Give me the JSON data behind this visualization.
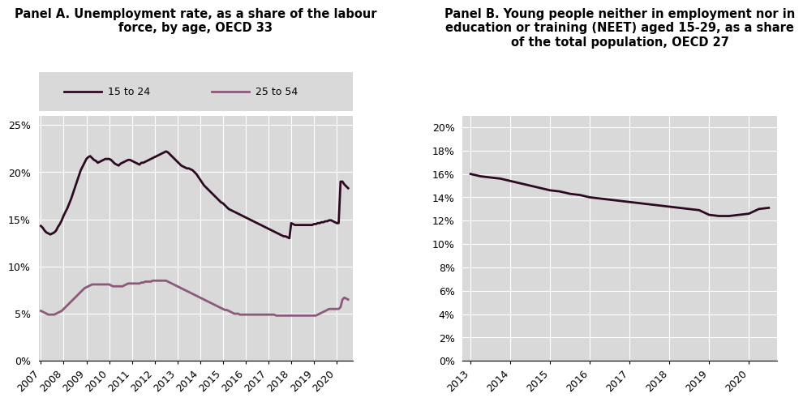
{
  "panel_a_title": "Panel A. Unemployment rate, as a share of the labour\nforce, by age, OECD 33",
  "panel_b_title": "Panel B. Young people neither in employment nor in\neducation or training (NEET) aged 15-29, as a share\nof the total population, OECD 27",
  "color_15_24": "#2d0a22",
  "color_25_54": "#8b5a7a",
  "color_neet": "#2d0a22",
  "bg_color": "#d9d9d9",
  "label_15_24": "15 to 24",
  "label_25_54": "25 to 54",
  "panel_a_x": [
    2007.0,
    2007.083,
    2007.167,
    2007.25,
    2007.333,
    2007.417,
    2007.5,
    2007.583,
    2007.667,
    2007.75,
    2007.833,
    2007.917,
    2008.0,
    2008.083,
    2008.167,
    2008.25,
    2008.333,
    2008.417,
    2008.5,
    2008.583,
    2008.667,
    2008.75,
    2008.833,
    2008.917,
    2009.0,
    2009.083,
    2009.167,
    2009.25,
    2009.333,
    2009.417,
    2009.5,
    2009.583,
    2009.667,
    2009.75,
    2009.833,
    2009.917,
    2010.0,
    2010.083,
    2010.167,
    2010.25,
    2010.333,
    2010.417,
    2010.5,
    2010.583,
    2010.667,
    2010.75,
    2010.833,
    2010.917,
    2011.0,
    2011.083,
    2011.167,
    2011.25,
    2011.333,
    2011.417,
    2011.5,
    2011.583,
    2011.667,
    2011.75,
    2011.833,
    2011.917,
    2012.0,
    2012.083,
    2012.167,
    2012.25,
    2012.333,
    2012.417,
    2012.5,
    2012.583,
    2012.667,
    2012.75,
    2012.833,
    2012.917,
    2013.0,
    2013.083,
    2013.167,
    2013.25,
    2013.333,
    2013.417,
    2013.5,
    2013.583,
    2013.667,
    2013.75,
    2013.833,
    2013.917,
    2014.0,
    2014.083,
    2014.167,
    2014.25,
    2014.333,
    2014.417,
    2014.5,
    2014.583,
    2014.667,
    2014.75,
    2014.833,
    2014.917,
    2015.0,
    2015.083,
    2015.167,
    2015.25,
    2015.333,
    2015.417,
    2015.5,
    2015.583,
    2015.667,
    2015.75,
    2015.833,
    2015.917,
    2016.0,
    2016.083,
    2016.167,
    2016.25,
    2016.333,
    2016.417,
    2016.5,
    2016.583,
    2016.667,
    2016.75,
    2016.833,
    2016.917,
    2017.0,
    2017.083,
    2017.167,
    2017.25,
    2017.333,
    2017.417,
    2017.5,
    2017.583,
    2017.667,
    2017.75,
    2017.833,
    2017.917,
    2018.0,
    2018.083,
    2018.167,
    2018.25,
    2018.333,
    2018.417,
    2018.5,
    2018.583,
    2018.667,
    2018.75,
    2018.833,
    2018.917,
    2019.0,
    2019.083,
    2019.167,
    2019.25,
    2019.333,
    2019.417,
    2019.5,
    2019.583,
    2019.667,
    2019.75,
    2019.833,
    2019.917,
    2020.0,
    2020.083,
    2020.167,
    2020.25,
    2020.333,
    2020.417,
    2020.5
  ],
  "y_15_24": [
    14.3,
    14.1,
    13.8,
    13.6,
    13.5,
    13.4,
    13.5,
    13.6,
    13.8,
    14.2,
    14.5,
    14.9,
    15.4,
    15.8,
    16.2,
    16.7,
    17.2,
    17.8,
    18.4,
    19.0,
    19.6,
    20.2,
    20.6,
    21.0,
    21.4,
    21.6,
    21.7,
    21.5,
    21.3,
    21.2,
    21.0,
    21.1,
    21.2,
    21.3,
    21.4,
    21.4,
    21.4,
    21.3,
    21.1,
    20.9,
    20.8,
    20.7,
    20.9,
    21.0,
    21.1,
    21.2,
    21.3,
    21.3,
    21.2,
    21.1,
    21.0,
    20.9,
    20.8,
    21.0,
    21.0,
    21.1,
    21.2,
    21.3,
    21.4,
    21.5,
    21.6,
    21.7,
    21.8,
    21.9,
    22.0,
    22.1,
    22.2,
    22.1,
    21.9,
    21.7,
    21.5,
    21.3,
    21.1,
    20.9,
    20.7,
    20.6,
    20.5,
    20.4,
    20.4,
    20.3,
    20.2,
    20.0,
    19.8,
    19.5,
    19.2,
    18.9,
    18.6,
    18.4,
    18.2,
    18.0,
    17.8,
    17.6,
    17.4,
    17.2,
    17.0,
    16.8,
    16.7,
    16.5,
    16.3,
    16.1,
    16.0,
    15.9,
    15.8,
    15.7,
    15.6,
    15.5,
    15.4,
    15.3,
    15.2,
    15.1,
    15.0,
    14.9,
    14.8,
    14.7,
    14.6,
    14.5,
    14.4,
    14.3,
    14.2,
    14.1,
    14.0,
    13.9,
    13.8,
    13.7,
    13.6,
    13.5,
    13.4,
    13.3,
    13.2,
    13.2,
    13.1,
    13.0,
    14.6,
    14.5,
    14.4,
    14.4,
    14.4,
    14.4,
    14.4,
    14.4,
    14.4,
    14.4,
    14.4,
    14.4,
    14.5,
    14.5,
    14.6,
    14.6,
    14.7,
    14.7,
    14.8,
    14.8,
    14.9,
    14.9,
    14.8,
    14.7,
    14.6,
    14.6,
    19.0,
    19.0,
    18.7,
    18.5,
    18.3
  ],
  "y_25_54": [
    5.3,
    5.2,
    5.1,
    5.0,
    4.9,
    4.9,
    4.9,
    4.9,
    5.0,
    5.1,
    5.2,
    5.3,
    5.5,
    5.7,
    5.9,
    6.1,
    6.3,
    6.5,
    6.7,
    6.9,
    7.1,
    7.3,
    7.5,
    7.7,
    7.8,
    7.9,
    8.0,
    8.1,
    8.1,
    8.1,
    8.1,
    8.1,
    8.1,
    8.1,
    8.1,
    8.1,
    8.1,
    8.0,
    7.9,
    7.9,
    7.9,
    7.9,
    7.9,
    7.9,
    8.0,
    8.1,
    8.2,
    8.2,
    8.2,
    8.2,
    8.2,
    8.2,
    8.2,
    8.3,
    8.3,
    8.4,
    8.4,
    8.4,
    8.4,
    8.5,
    8.5,
    8.5,
    8.5,
    8.5,
    8.5,
    8.5,
    8.5,
    8.4,
    8.3,
    8.2,
    8.1,
    8.0,
    7.9,
    7.8,
    7.7,
    7.6,
    7.5,
    7.4,
    7.3,
    7.2,
    7.1,
    7.0,
    6.9,
    6.8,
    6.7,
    6.6,
    6.5,
    6.4,
    6.3,
    6.2,
    6.1,
    6.0,
    5.9,
    5.8,
    5.7,
    5.6,
    5.5,
    5.4,
    5.4,
    5.3,
    5.2,
    5.1,
    5.0,
    5.0,
    5.0,
    4.9,
    4.9,
    4.9,
    4.9,
    4.9,
    4.9,
    4.9,
    4.9,
    4.9,
    4.9,
    4.9,
    4.9,
    4.9,
    4.9,
    4.9,
    4.9,
    4.9,
    4.9,
    4.9,
    4.8,
    4.8,
    4.8,
    4.8,
    4.8,
    4.8,
    4.8,
    4.8,
    4.8,
    4.8,
    4.8,
    4.8,
    4.8,
    4.8,
    4.8,
    4.8,
    4.8,
    4.8,
    4.8,
    4.8,
    4.8,
    4.8,
    4.9,
    5.0,
    5.1,
    5.2,
    5.3,
    5.4,
    5.5,
    5.5,
    5.5,
    5.5,
    5.5,
    5.5,
    5.7,
    6.5,
    6.7,
    6.6,
    6.5
  ],
  "panel_b_x": [
    2013.0,
    2013.25,
    2013.5,
    2013.75,
    2014.0,
    2014.25,
    2014.5,
    2014.75,
    2015.0,
    2015.25,
    2015.5,
    2015.75,
    2016.0,
    2016.25,
    2016.5,
    2016.75,
    2017.0,
    2017.25,
    2017.5,
    2017.75,
    2018.0,
    2018.25,
    2018.5,
    2018.75,
    2019.0,
    2019.25,
    2019.5,
    2019.75,
    2020.0,
    2020.25,
    2020.5
  ],
  "y_neet": [
    16.0,
    15.8,
    15.7,
    15.6,
    15.4,
    15.2,
    15.0,
    14.8,
    14.6,
    14.5,
    14.3,
    14.2,
    14.0,
    13.9,
    13.8,
    13.7,
    13.6,
    13.5,
    13.4,
    13.3,
    13.2,
    13.1,
    13.0,
    12.9,
    12.5,
    12.4,
    12.4,
    12.5,
    12.6,
    13.0,
    13.1
  ],
  "panel_a_xlim": [
    2006.9,
    2020.7
  ],
  "panel_a_ylim": [
    0,
    26
  ],
  "panel_b_xlim": [
    2012.8,
    2020.7
  ],
  "panel_b_ylim": [
    0,
    21
  ],
  "panel_a_yticks": [
    0,
    5,
    10,
    15,
    20,
    25
  ],
  "panel_b_yticks": [
    0,
    2,
    4,
    6,
    8,
    10,
    12,
    14,
    16,
    18,
    20
  ],
  "panel_a_xticks": [
    2007,
    2008,
    2009,
    2010,
    2011,
    2012,
    2013,
    2014,
    2015,
    2016,
    2017,
    2018,
    2019,
    2020
  ],
  "panel_b_xticks": [
    2013,
    2014,
    2015,
    2016,
    2017,
    2018,
    2019,
    2020
  ],
  "line_width": 2.0,
  "font_size_title": 10.5,
  "font_size_tick": 9,
  "font_size_legend": 9,
  "white_color": "#ffffff"
}
